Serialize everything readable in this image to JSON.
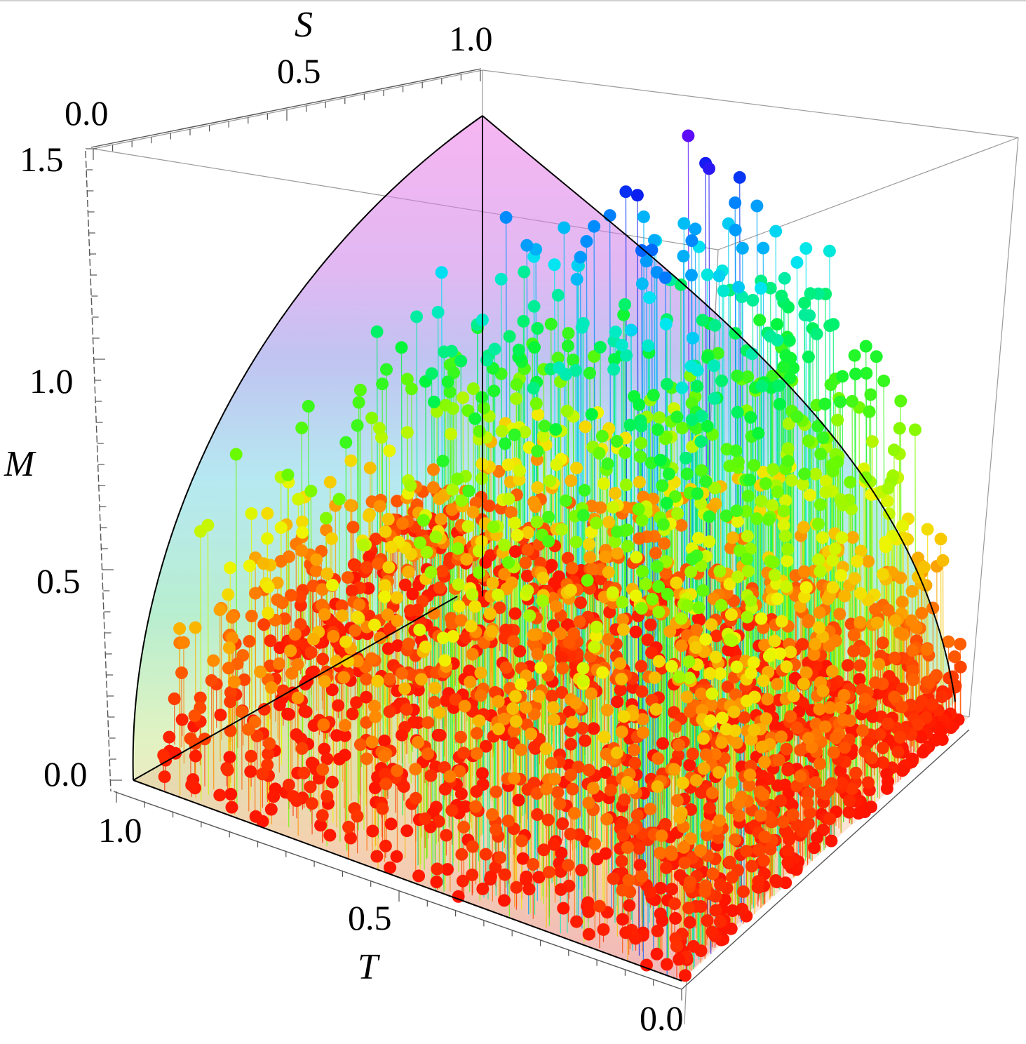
{
  "chart_data": {
    "type": "scatter",
    "dimension": "3d",
    "axes": {
      "x": {
        "label": "T",
        "range": [
          0,
          1
        ],
        "ticks": [
          "1.0",
          "0.5",
          "0.0"
        ]
      },
      "y": {
        "label": "S",
        "range": [
          0,
          1
        ],
        "ticks": [
          "0.0",
          "0.5",
          "1.0"
        ]
      },
      "z": {
        "label": "M",
        "range": [
          0,
          1.5
        ],
        "ticks": [
          "0.0",
          "0.5",
          "1.0",
          "1.5"
        ]
      }
    },
    "tick_labels": {
      "s_0": "0.0",
      "s_05": "0.5",
      "s_1": "1.0",
      "m_0": "0.0",
      "m_05": "0.5",
      "m_1": "1.0",
      "m_15": "1.5",
      "t_1": "1.0",
      "t_05": "0.5",
      "t_0": "0.0"
    },
    "axis_labels": {
      "s": "S",
      "m": "M",
      "t": "T"
    },
    "surface": {
      "formula": "M = 1.5*sqrt((1-T)*(1-S))",
      "color_by": "M",
      "opacity": 0.5
    },
    "series": [
      {
        "style": "points with drop lines to M=0, colored by M (red→yellow→green→cyan→blue→purple)",
        "count": 2600,
        "distribution": "dense near T=0 and small M, sparse at high M"
      }
    ],
    "grid": false,
    "box": true
  }
}
